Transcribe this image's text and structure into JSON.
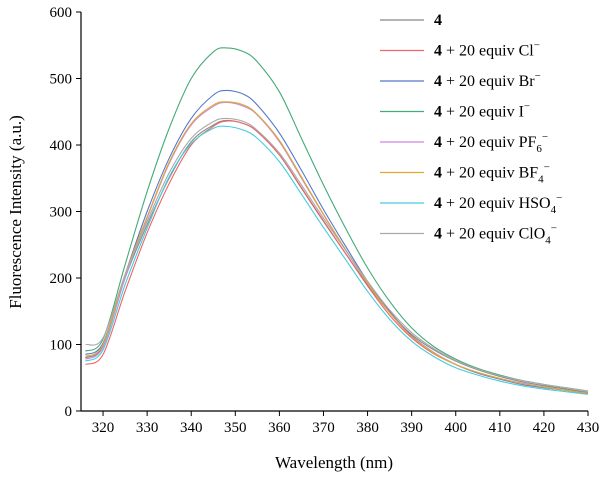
{
  "chart_data": {
    "type": "line",
    "xlabel": "Wavelength (nm)",
    "ylabel": "Fluorescence Intensity (a.u.)",
    "xlim": [
      315,
      430
    ],
    "ylim": [
      0,
      600
    ],
    "xticks": [
      320,
      330,
      340,
      350,
      360,
      370,
      380,
      390,
      400,
      410,
      420,
      430
    ],
    "yticks": [
      0,
      100,
      200,
      300,
      400,
      500,
      600
    ],
    "x": [
      316,
      320,
      325,
      330,
      335,
      340,
      345,
      348,
      352,
      355,
      360,
      365,
      370,
      375,
      380,
      385,
      390,
      395,
      400,
      405,
      410,
      415,
      420,
      425,
      430
    ],
    "series": [
      {
        "name": "4",
        "compound": "4",
        "suffix": "",
        "ion": "",
        "sub": "",
        "color": "#888888",
        "values": [
          80,
          98,
          200,
          280,
          350,
          405,
          430,
          437,
          432,
          420,
          385,
          335,
          285,
          237,
          190,
          148,
          115,
          92,
          75,
          62,
          52,
          44,
          38,
          33,
          28
        ]
      },
      {
        "name": "4 + 20 equiv Cl−",
        "compound": "4",
        "suffix": " + 20 equiv ",
        "ion": "Cl",
        "sub": "",
        "color": "#ee6666",
        "values": [
          70,
          85,
          180,
          268,
          342,
          400,
          428,
          436,
          432,
          420,
          385,
          336,
          286,
          237,
          188,
          144,
          110,
          86,
          70,
          57,
          48,
          41,
          36,
          31,
          26
        ]
      },
      {
        "name": "4 + 20 equiv Br−",
        "compound": "4",
        "suffix": " + 20 equiv ",
        "ion": "Br",
        "sub": "",
        "color": "#5577cc",
        "values": [
          85,
          102,
          205,
          300,
          380,
          440,
          475,
          482,
          476,
          460,
          418,
          362,
          303,
          248,
          195,
          150,
          113,
          88,
          70,
          57,
          48,
          40,
          35,
          31,
          27
        ]
      },
      {
        "name": "4 + 20 equiv I−",
        "compound": "4",
        "suffix": " + 20 equiv ",
        "ion": "I",
        "sub": "",
        "color": "#44aa77",
        "values": [
          90,
          108,
          220,
          330,
          425,
          500,
          540,
          546,
          540,
          525,
          480,
          410,
          340,
          275,
          215,
          165,
          125,
          97,
          78,
          64,
          54,
          46,
          40,
          35,
          30
        ]
      },
      {
        "name": "4 + 20 equiv PF6−",
        "compound": "4",
        "suffix": " + 20 equiv ",
        "ion": "PF",
        "sub": "6",
        "color": "#cc88dd",
        "values": [
          78,
          96,
          200,
          290,
          372,
          430,
          458,
          464,
          458,
          445,
          405,
          350,
          295,
          242,
          192,
          148,
          112,
          88,
          70,
          58,
          49,
          42,
          36,
          31,
          27
        ]
      },
      {
        "name": "4 + 20 equiv BF4−",
        "compound": "4",
        "suffix": " + 20 equiv ",
        "ion": "BF",
        "sub": "4",
        "color": "#ddaa33",
        "values": [
          82,
          100,
          205,
          292,
          374,
          432,
          460,
          465,
          460,
          446,
          407,
          352,
          296,
          243,
          192,
          148,
          112,
          87,
          70,
          58,
          49,
          41,
          36,
          31,
          27
        ]
      },
      {
        "name": "4 + 20 equiv HSO4−",
        "compound": "4",
        "suffix": " + 20 equiv ",
        "ion": "HSO",
        "sub": "4",
        "color": "#44ccdd",
        "values": [
          75,
          92,
          190,
          275,
          352,
          402,
          425,
          428,
          422,
          410,
          375,
          326,
          276,
          228,
          180,
          138,
          105,
          82,
          65,
          54,
          45,
          38,
          33,
          29,
          25
        ]
      },
      {
        "name": "4 + 20 equiv ClO4−",
        "compound": "4",
        "suffix": " + 20 equiv ",
        "ion": "ClO",
        "sub": "4",
        "color": "#aaaaaa",
        "values": [
          100,
          110,
          205,
          285,
          358,
          410,
          435,
          440,
          435,
          422,
          388,
          340,
          290,
          242,
          195,
          152,
          118,
          94,
          76,
          63,
          53,
          46,
          40,
          35,
          30
        ]
      }
    ]
  }
}
